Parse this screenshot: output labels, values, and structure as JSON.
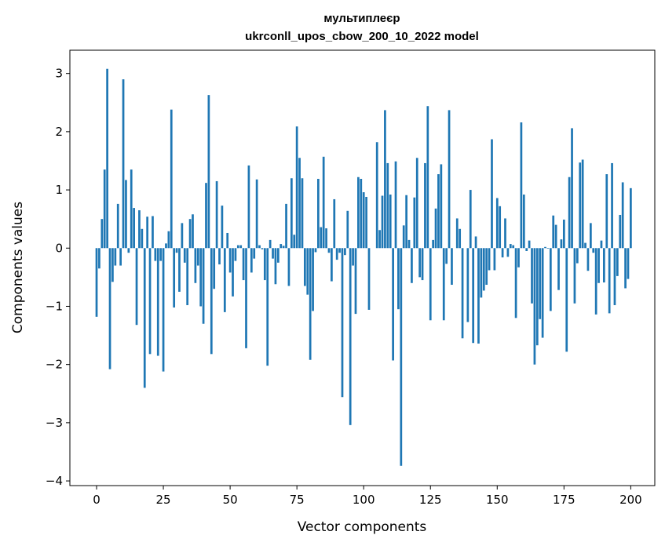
{
  "chart_data": {
    "type": "bar",
    "title_line1": "мультиплеєр",
    "title_line2": "ukrconll_upos_cbow_200_10_2022 model",
    "xlabel": "Vector components",
    "ylabel": "Components values",
    "xlim": [
      -10,
      209
    ],
    "ylim": [
      -4.08,
      3.4
    ],
    "xticks": [
      0,
      25,
      50,
      75,
      100,
      125,
      150,
      175,
      200
    ],
    "xtick_labels": [
      "0",
      "25",
      "50",
      "75",
      "100",
      "125",
      "150",
      "175",
      "200"
    ],
    "yticks": [
      -4,
      -3,
      -2,
      -1,
      0,
      1,
      2,
      3
    ],
    "ytick_labels": [
      "−4",
      "−3",
      "−2",
      "−1",
      "0",
      "1",
      "2",
      "3"
    ],
    "grid": false,
    "bar_color": "#1f77b4",
    "values": [
      -1.18,
      -0.35,
      0.5,
      1.35,
      3.08,
      -2.08,
      -0.58,
      -0.3,
      0.76,
      -0.3,
      2.9,
      1.17,
      -0.08,
      1.35,
      0.69,
      -1.32,
      0.65,
      0.33,
      -2.4,
      0.54,
      -1.82,
      0.55,
      -0.22,
      -1.85,
      -0.22,
      -2.12,
      0.08,
      0.29,
      2.38,
      -1.02,
      -0.08,
      -0.75,
      0.43,
      -0.25,
      -0.98,
      0.5,
      0.58,
      -0.6,
      -0.3,
      -1.0,
      -1.3,
      1.12,
      2.63,
      -1.82,
      -0.7,
      1.15,
      -0.28,
      0.73,
      -1.1,
      0.26,
      -0.42,
      -0.83,
      -0.22,
      0.05,
      0.05,
      -0.55,
      -1.72,
      1.42,
      -0.42,
      -0.18,
      1.18,
      0.05,
      -0.02,
      -0.55,
      -2.02,
      0.14,
      -0.18,
      -0.62,
      -0.25,
      0.07,
      0.04,
      0.76,
      -0.65,
      1.2,
      0.23,
      2.09,
      1.55,
      1.2,
      -0.65,
      -0.8,
      -1.92,
      -1.08,
      -0.07,
      1.19,
      0.36,
      1.57,
      0.34,
      -0.08,
      -0.57,
      0.84,
      -0.2,
      -0.08,
      -2.56,
      -0.12,
      0.64,
      -3.04,
      -0.3,
      -1.13,
      1.22,
      1.19,
      0.96,
      0.88,
      -1.06,
      0.0,
      0.0,
      1.82,
      0.31,
      0.9,
      2.37,
      1.46,
      0.92,
      -1.93,
      1.49,
      -1.05,
      -3.74,
      0.39,
      0.91,
      0.14,
      -0.6,
      0.87,
      1.55,
      -0.5,
      -0.55,
      1.46,
      2.44,
      -1.24,
      0.14,
      0.68,
      1.27,
      1.44,
      -1.24,
      -0.27,
      2.37,
      -0.63,
      0.0,
      0.51,
      0.33,
      -1.55,
      0.0,
      -1.27,
      1.0,
      -1.63,
      0.2,
      -1.64,
      -0.85,
      -0.73,
      -0.63,
      -0.38,
      1.87,
      -0.38,
      0.86,
      0.72,
      -0.16,
      0.51,
      -0.15,
      0.07,
      0.05,
      -1.2,
      -0.33,
      2.16,
      0.92,
      -0.05,
      0.13,
      -0.95,
      -2.0,
      -1.67,
      -1.22,
      -1.54,
      0.02,
      -0.01,
      -1.08,
      0.56,
      0.4,
      -0.72,
      0.15,
      0.49,
      -1.78,
      1.22,
      2.06,
      -0.95,
      -0.26,
      1.47,
      1.52,
      0.09,
      -0.39,
      0.43,
      -0.08,
      -1.14,
      -0.6,
      0.13,
      -0.59,
      1.27,
      -1.12,
      1.46,
      -0.98,
      -0.48,
      0.57,
      1.13,
      -0.69,
      -0.53,
      1.03
    ]
  }
}
